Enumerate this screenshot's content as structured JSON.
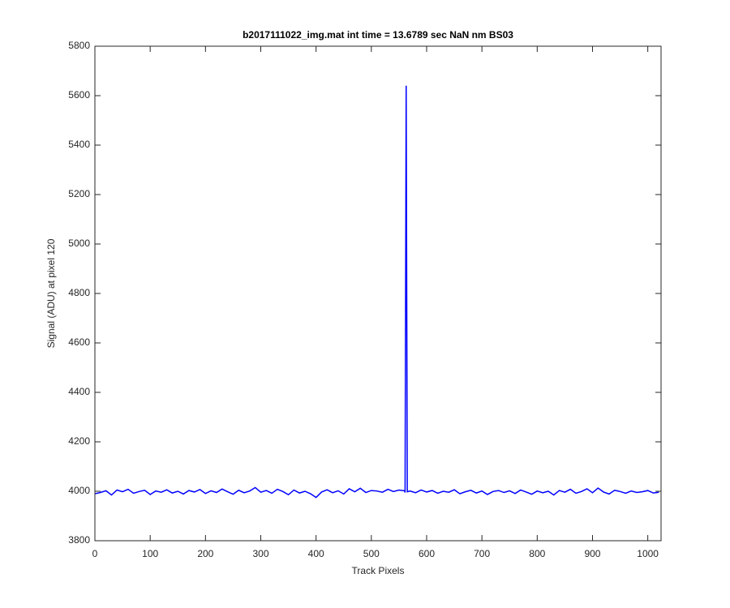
{
  "chart_data": {
    "type": "line",
    "title": "b2017111022_img.mat int time = 13.6789 sec  NaN nm BS03",
    "x_label": "Track Pixels",
    "y_label": "Signal (ADU) at pixel 120",
    "x": [
      0,
      10,
      20,
      30,
      40,
      50,
      60,
      70,
      80,
      90,
      100,
      110,
      120,
      130,
      140,
      150,
      160,
      170,
      180,
      190,
      200,
      210,
      220,
      230,
      240,
      250,
      260,
      270,
      280,
      290,
      300,
      310,
      320,
      330,
      340,
      350,
      360,
      370,
      380,
      390,
      400,
      410,
      420,
      430,
      440,
      450,
      460,
      470,
      480,
      490,
      500,
      510,
      520,
      530,
      540,
      550,
      560,
      561,
      563,
      565,
      570,
      580,
      590,
      600,
      610,
      620,
      630,
      640,
      650,
      660,
      670,
      680,
      690,
      700,
      710,
      720,
      730,
      740,
      750,
      760,
      770,
      780,
      790,
      800,
      810,
      820,
      830,
      840,
      850,
      860,
      870,
      880,
      890,
      900,
      910,
      920,
      930,
      940,
      950,
      960,
      970,
      980,
      990,
      1000,
      1010,
      1020
    ],
    "series": [
      {
        "color": "#0000ff",
        "values": [
          3990,
          3995,
          4002,
          3985,
          4005,
          3998,
          4008,
          3992,
          3999,
          4004,
          3987,
          4001,
          3996,
          4006,
          3993,
          4000,
          3989,
          4003,
          3997,
          4007,
          3991,
          4002,
          3995,
          4009,
          3998,
          3988,
          4004,
          3994,
          4001,
          4015,
          3996,
          4003,
          3992,
          4008,
          3999,
          3986,
          4005,
          3993,
          4000,
          3990,
          3975,
          3997,
          4006,
          3994,
          4002,
          3989,
          4010,
          3998,
          4012,
          3995,
          4003,
          4001,
          3996,
          4008,
          3999,
          4005,
          4002,
          3995,
          5640,
          3998,
          4001,
          3994,
          4005,
          3997,
          4003,
          3992,
          4000,
          3996,
          4006,
          3990,
          3998,
          4004,
          3993,
          4001,
          3987,
          3999,
          4003,
          3995,
          4002,
          3991,
          4005,
          3997,
          3988,
          4001,
          3994,
          4000,
          3985,
          4003,
          3996,
          4008,
          3992,
          3999,
          4010,
          3994,
          4013,
          3997,
          3989,
          4004,
          3999,
          3992,
          4001,
          3995,
          3998,
          4003,
          3993,
          3996
        ]
      }
    ],
    "xlim": [
      0,
      1024
    ],
    "ylim": [
      3800,
      5800
    ],
    "xticks": [
      0,
      100,
      200,
      300,
      400,
      500,
      600,
      700,
      800,
      900,
      1000
    ],
    "yticks": [
      3800,
      4000,
      4200,
      4400,
      4600,
      4800,
      5000,
      5200,
      5400,
      5600,
      5800
    ],
    "grid": false
  }
}
